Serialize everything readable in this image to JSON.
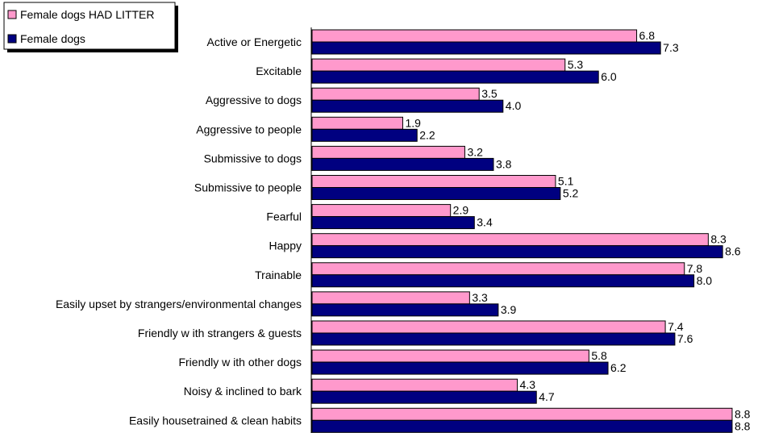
{
  "chart_data": {
    "type": "bar",
    "orientation": "horizontal",
    "categories": [
      "Active or Energetic",
      "Excitable",
      "Aggressive to dogs",
      "Aggressive to people",
      "Submissive to dogs",
      "Submissive to people",
      "Fearful",
      "Happy",
      "Trainable",
      "Easily upset by strangers/environmental changes",
      "Friendly w ith strangers & guests",
      "Friendly w ith other dogs",
      "Noisy & inclined to bark",
      "Easily housetrained & clean habits"
    ],
    "series": [
      {
        "name": "Female dogs HAD LITTER",
        "color": "#ff99cc",
        "values": [
          6.8,
          5.3,
          3.5,
          1.9,
          3.2,
          5.1,
          2.9,
          8.3,
          7.8,
          3.3,
          7.4,
          5.8,
          4.3,
          8.8
        ],
        "labels": [
          "6.8",
          "5.3",
          "3.5",
          "1.9",
          "3.2",
          "5.1",
          "2.9",
          "8.3",
          "7.8",
          "3.3",
          "7.4",
          "5.8",
          "4.3",
          "8.8"
        ]
      },
      {
        "name": "Female dogs",
        "color": "#000080",
        "values": [
          7.3,
          6.0,
          4.0,
          2.2,
          3.8,
          5.2,
          3.4,
          8.6,
          8.0,
          3.9,
          7.6,
          6.2,
          4.7,
          8.8
        ],
        "labels": [
          "7.3",
          "6.0",
          "4.0",
          "2.2",
          "3.8",
          "5.2",
          "3.4",
          "8.6",
          "8.0",
          "3.9",
          "7.6",
          "6.2",
          "4.7",
          "8.8"
        ]
      }
    ],
    "xlim": [
      0,
      8.8
    ],
    "grid": false,
    "legend_position": "top-left"
  }
}
